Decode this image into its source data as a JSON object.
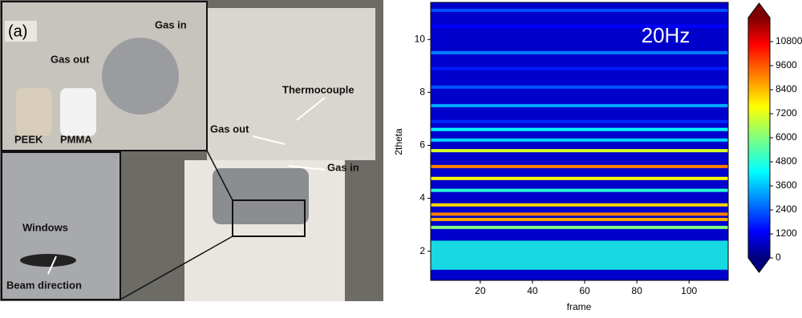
{
  "photo": {
    "panel_label": "(a)",
    "labels": [
      "Gas in",
      "Gas out",
      "PEEK",
      "PMMA",
      "Thermocouple",
      "Gas out",
      "Gas in",
      "Windows",
      "Beam direction"
    ]
  },
  "chart_data": {
    "type": "heatmap",
    "annotation": "20Hz",
    "x_label": "frame",
    "y_label": "2theta",
    "xlim": [
      1,
      115
    ],
    "xticks": [
      20,
      40,
      60,
      80,
      100
    ],
    "ylim": [
      0.9,
      11.4
    ],
    "yticks": [
      2,
      4,
      6,
      8,
      10
    ],
    "clim": [
      0,
      12000
    ],
    "cticks": [
      0,
      1200,
      2400,
      3600,
      4800,
      6000,
      7200,
      8400,
      9600,
      10800
    ],
    "background": 900,
    "y": [
      11.1,
      10.5,
      9.5,
      8.9,
      8.2,
      7.5,
      6.9,
      6.6,
      6.2,
      5.8,
      5.2,
      4.75,
      4.3,
      3.75,
      3.4,
      3.2,
      2.9
    ],
    "values": [
      2400,
      1500,
      3000,
      1800,
      2500,
      3500,
      2000,
      4500,
      4000,
      7000,
      9000,
      7500,
      5000,
      8000,
      9000,
      8500,
      6000
    ],
    "band": {
      "range": [
        1.3,
        2.4
      ],
      "value": 4800
    }
  }
}
